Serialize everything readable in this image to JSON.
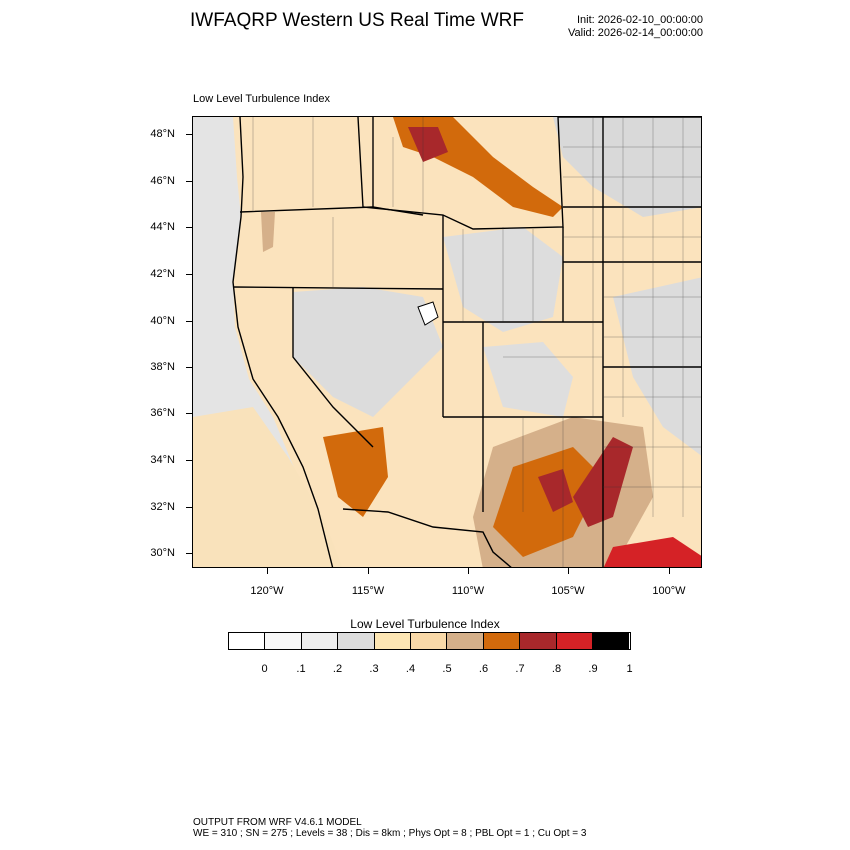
{
  "header": {
    "title": "IWFAQRP Western US Real Time WRF",
    "init": "Init: 2026-02-10_00:00:00",
    "valid": "Valid: 2026-02-14_00:00:00"
  },
  "map": {
    "field_title": "Low Level Turbulence Index",
    "lat_labels": [
      "48°N",
      "46°N",
      "44°N",
      "42°N",
      "40°N",
      "38°N",
      "36°N",
      "34°N",
      "32°N",
      "30°N"
    ],
    "lon_labels": [
      "120°W",
      "115°W",
      "110°W",
      "105°W",
      "100°W"
    ]
  },
  "colorbar": {
    "title": "Low Level Turbulence Index",
    "labels": [
      "0",
      ".1",
      ".2",
      ".3",
      ".4",
      ".5",
      ".6",
      ".7",
      ".8",
      ".9",
      "1"
    ],
    "colors": [
      "#ffffff",
      "#f7f7f7",
      "#eeeeee",
      "#dddddd",
      "#fde6b4",
      "#f9d9a8",
      "#d5b08a",
      "#d26a0c",
      "#a8282b",
      "#d52226",
      "#000000"
    ]
  },
  "footer": {
    "line1": "OUTPUT FROM WRF V4.6.1 MODEL",
    "line2": "WE = 310 ; SN = 275 ; Levels = 38 ; Dis = 8km ; Phys Opt = 8 ; PBL Opt = 1 ; Cu Opt = 3"
  }
}
